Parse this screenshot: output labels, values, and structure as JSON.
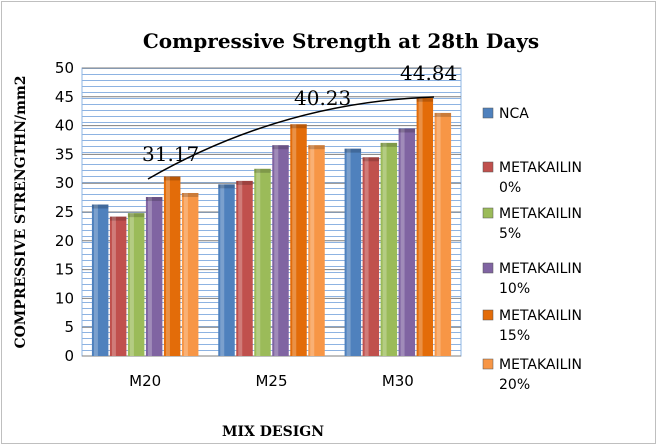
{
  "chart_data": {
    "type": "bar",
    "title": "Compressive Strength at 28th Days",
    "xlabel": "MIX DESIGN",
    "ylabel": "COMPRESSIVE STRENGTHN/mm2",
    "ylim": [
      0,
      50
    ],
    "yticks": [
      0,
      5,
      10,
      15,
      20,
      25,
      30,
      35,
      40,
      45,
      50
    ],
    "grid": true,
    "legend_position": "right",
    "categories": [
      "M20",
      "M25",
      "M30"
    ],
    "series": [
      {
        "name": "NCA",
        "legend_lines": [
          "NCA"
        ],
        "color": "#4f81bd",
        "values": [
          26.3,
          29.8,
          36.0
        ]
      },
      {
        "name": "METAKAILIN 0%",
        "legend_lines": [
          "METAKAILIN",
          "0%"
        ],
        "color": "#c0504d",
        "values": [
          24.2,
          30.4,
          34.5
        ]
      },
      {
        "name": "METAKAILIN 5%",
        "legend_lines": [
          "METAKAILIN",
          "5%"
        ],
        "color": "#9bbb59",
        "values": [
          24.8,
          32.5,
          37.0
        ]
      },
      {
        "name": "METAKAILIN 10%",
        "legend_lines": [
          "METAKAILIN",
          "10%"
        ],
        "color": "#8064a2",
        "values": [
          27.6,
          36.6,
          39.5
        ]
      },
      {
        "name": "METAKAILIN 15%",
        "legend_lines": [
          "METAKAILIN",
          "15%"
        ],
        "color": "#e36c09",
        "values": [
          31.17,
          40.23,
          44.84
        ]
      },
      {
        "name": "METAKAILIN 20%",
        "legend_lines": [
          "METAKAILIN",
          "20%"
        ],
        "color": "#f79646",
        "values": [
          28.3,
          36.6,
          42.2
        ]
      }
    ],
    "annotations": [
      "31.17",
      "40.23",
      "44.84"
    ]
  }
}
